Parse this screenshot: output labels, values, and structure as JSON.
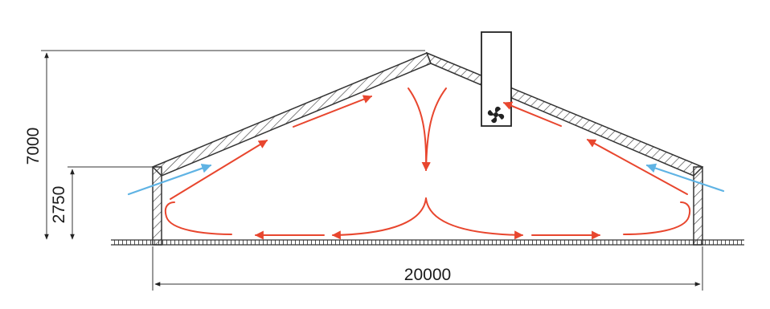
{
  "dimensions": {
    "total_height": "7000",
    "wall_height": "2750",
    "building_width": "20000"
  },
  "colors": {
    "warm_airflow": "#e8462e",
    "cold_inflow": "#5fb3e4",
    "structure": "#3a3a3a",
    "background": "#ffffff"
  },
  "icons": {
    "exhaust_fan": "fan-icon"
  }
}
